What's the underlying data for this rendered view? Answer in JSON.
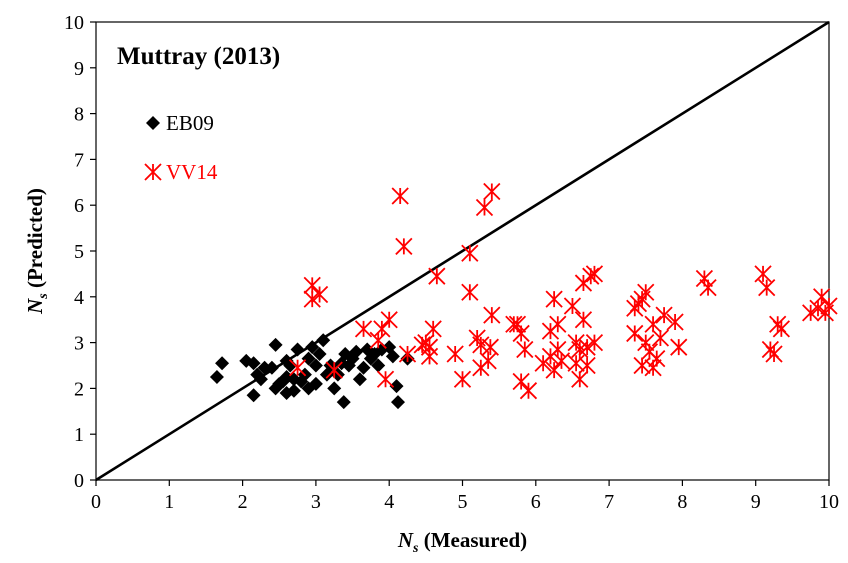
{
  "chart_data": {
    "type": "scatter",
    "title": "Muttray (2013)",
    "xlabel": {
      "var": "N",
      "sub": "s",
      "text": " (Measured)"
    },
    "ylabel": {
      "var": "N",
      "sub": "s",
      "text": " (Predicted)"
    },
    "xlim": [
      0,
      10
    ],
    "ylim": [
      0,
      10
    ],
    "x_ticks": [
      "0",
      "1",
      "2",
      "3",
      "4",
      "5",
      "6",
      "7",
      "8",
      "9",
      "10"
    ],
    "y_ticks": [
      "0",
      "1",
      "2",
      "3",
      "4",
      "5",
      "6",
      "7",
      "8",
      "9",
      "10"
    ],
    "grid": false,
    "legend_position": "top-left",
    "reference_line": {
      "label": "",
      "x": [
        0,
        10
      ],
      "y": [
        0,
        10
      ],
      "color": "#000000"
    },
    "series": [
      {
        "name": "EB09",
        "marker": "diamond",
        "color": "#000000",
        "points": [
          [
            1.65,
            2.25
          ],
          [
            1.72,
            2.55
          ],
          [
            2.05,
            2.6
          ],
          [
            2.15,
            2.55
          ],
          [
            2.2,
            2.3
          ],
          [
            2.15,
            1.85
          ],
          [
            2.25,
            2.2
          ],
          [
            2.3,
            2.45
          ],
          [
            2.4,
            2.45
          ],
          [
            2.45,
            2.95
          ],
          [
            2.45,
            2.0
          ],
          [
            2.5,
            2.1
          ],
          [
            2.55,
            2.15
          ],
          [
            2.6,
            1.9
          ],
          [
            2.6,
            2.25
          ],
          [
            2.6,
            2.6
          ],
          [
            2.65,
            2.5
          ],
          [
            2.7,
            2.2
          ],
          [
            2.7,
            1.95
          ],
          [
            2.75,
            2.85
          ],
          [
            2.8,
            2.15
          ],
          [
            2.85,
            2.3
          ],
          [
            2.9,
            2.0
          ],
          [
            2.9,
            2.65
          ],
          [
            2.95,
            2.9
          ],
          [
            3.0,
            2.1
          ],
          [
            3.0,
            2.5
          ],
          [
            3.05,
            2.75
          ],
          [
            3.1,
            3.05
          ],
          [
            3.15,
            2.3
          ],
          [
            3.2,
            2.5
          ],
          [
            3.25,
            2.0
          ],
          [
            3.3,
            2.3
          ],
          [
            3.35,
            2.55
          ],
          [
            3.38,
            1.7
          ],
          [
            3.4,
            2.75
          ],
          [
            3.45,
            2.5
          ],
          [
            3.5,
            2.65
          ],
          [
            3.55,
            2.8
          ],
          [
            3.6,
            2.2
          ],
          [
            3.65,
            2.45
          ],
          [
            3.7,
            2.85
          ],
          [
            3.75,
            2.65
          ],
          [
            3.8,
            2.75
          ],
          [
            3.85,
            2.5
          ],
          [
            3.9,
            2.85
          ],
          [
            4.0,
            2.9
          ],
          [
            4.05,
            2.7
          ],
          [
            4.1,
            2.05
          ],
          [
            4.12,
            1.7
          ],
          [
            4.25,
            2.65
          ]
        ]
      },
      {
        "name": "VV14",
        "marker": "asterisk",
        "color": "#ff0000",
        "points": [
          [
            2.75,
            2.45
          ],
          [
            2.95,
            4.25
          ],
          [
            2.95,
            3.95
          ],
          [
            3.05,
            4.05
          ],
          [
            3.25,
            2.4
          ],
          [
            3.65,
            3.3
          ],
          [
            3.85,
            3.05
          ],
          [
            3.9,
            3.3
          ],
          [
            3.95,
            2.2
          ],
          [
            4.0,
            3.5
          ],
          [
            4.15,
            6.2
          ],
          [
            4.2,
            5.1
          ],
          [
            4.25,
            2.75
          ],
          [
            4.45,
            2.95
          ],
          [
            4.5,
            3.0
          ],
          [
            4.55,
            2.9
          ],
          [
            4.55,
            2.7
          ],
          [
            4.6,
            3.3
          ],
          [
            4.65,
            4.45
          ],
          [
            4.9,
            2.75
          ],
          [
            5.0,
            2.2
          ],
          [
            5.1,
            4.1
          ],
          [
            5.1,
            4.95
          ],
          [
            5.2,
            3.1
          ],
          [
            5.25,
            2.45
          ],
          [
            5.25,
            2.95
          ],
          [
            5.3,
            5.95
          ],
          [
            5.35,
            2.6
          ],
          [
            5.38,
            2.9
          ],
          [
            5.4,
            3.6
          ],
          [
            5.4,
            6.3
          ],
          [
            5.7,
            3.4
          ],
          [
            5.75,
            3.4
          ],
          [
            5.8,
            3.2
          ],
          [
            5.8,
            2.15
          ],
          [
            5.85,
            2.85
          ],
          [
            5.9,
            1.95
          ],
          [
            6.1,
            2.55
          ],
          [
            6.2,
            3.25
          ],
          [
            6.2,
            2.7
          ],
          [
            6.25,
            3.95
          ],
          [
            6.25,
            2.4
          ],
          [
            6.3,
            3.4
          ],
          [
            6.3,
            2.85
          ],
          [
            6.35,
            2.6
          ],
          [
            6.5,
            3.8
          ],
          [
            6.55,
            2.55
          ],
          [
            6.55,
            3.0
          ],
          [
            6.6,
            2.85
          ],
          [
            6.6,
            2.2
          ],
          [
            6.65,
            4.3
          ],
          [
            6.65,
            3.5
          ],
          [
            6.7,
            2.9
          ],
          [
            6.7,
            2.5
          ],
          [
            6.75,
            4.45
          ],
          [
            6.8,
            4.5
          ],
          [
            6.8,
            3.0
          ],
          [
            7.35,
            3.75
          ],
          [
            7.35,
            3.2
          ],
          [
            7.4,
            3.85
          ],
          [
            7.45,
            3.95
          ],
          [
            7.45,
            2.5
          ],
          [
            7.5,
            4.1
          ],
          [
            7.5,
            3.0
          ],
          [
            7.55,
            2.8
          ],
          [
            7.6,
            3.4
          ],
          [
            7.6,
            2.45
          ],
          [
            7.65,
            2.65
          ],
          [
            7.7,
            3.1
          ],
          [
            7.75,
            3.6
          ],
          [
            7.9,
            3.45
          ],
          [
            7.95,
            2.9
          ],
          [
            8.3,
            4.4
          ],
          [
            8.35,
            4.2
          ],
          [
            9.1,
            4.5
          ],
          [
            9.15,
            4.2
          ],
          [
            9.2,
            2.85
          ],
          [
            9.25,
            2.75
          ],
          [
            9.3,
            3.4
          ],
          [
            9.35,
            3.3
          ],
          [
            9.75,
            3.65
          ],
          [
            9.85,
            3.75
          ],
          [
            9.9,
            4.0
          ],
          [
            9.95,
            3.65
          ],
          [
            10.0,
            3.8
          ]
        ]
      }
    ]
  }
}
